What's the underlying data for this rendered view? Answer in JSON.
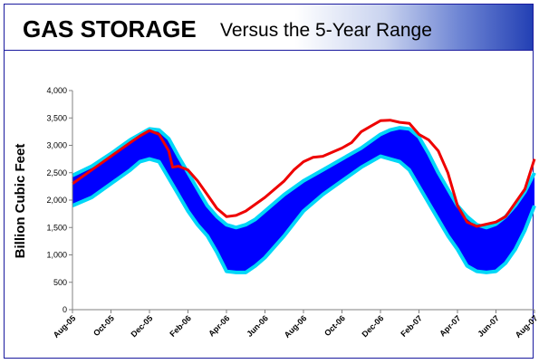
{
  "header": {
    "title_main": "GAS STORAGE",
    "title_sub": "Versus the 5-Year Range"
  },
  "chart_data": {
    "type": "area",
    "title": "GAS STORAGE Versus the 5-Year Range",
    "xlabel": "",
    "ylabel": "Billion Cubic Feet",
    "ylim": [
      0,
      4000
    ],
    "y_ticks": [
      "0",
      "500",
      "1,000",
      "1,500",
      "2,000",
      "2,500",
      "3,000",
      "3,500",
      "4,000"
    ],
    "x_ticks": [
      "Aug-05",
      "Oct-05",
      "Dec-05",
      "Feb-06",
      "Apr-06",
      "Jun-06",
      "Aug-06",
      "Oct-06",
      "Dec-06",
      "Feb-07",
      "Apr-07",
      "Jun-07",
      "Aug-07"
    ],
    "x_range": [
      0,
      24
    ],
    "grid": false,
    "colors": {
      "band_fill": "#0000ff",
      "band_edge": "#00d7f7",
      "storage_line": "#ee0000"
    },
    "series": [
      {
        "kind": "band_max",
        "points": [
          [
            0,
            2450
          ],
          [
            1,
            2620
          ],
          [
            2,
            2850
          ],
          [
            3,
            3100
          ],
          [
            3.5,
            3200
          ],
          [
            4,
            3300
          ],
          [
            4.5,
            3280
          ],
          [
            5,
            3120
          ],
          [
            5.5,
            2800
          ],
          [
            6,
            2500
          ],
          [
            6.5,
            2200
          ],
          [
            7,
            1900
          ],
          [
            7.5,
            1700
          ],
          [
            8,
            1550
          ],
          [
            8.5,
            1500
          ],
          [
            9,
            1550
          ],
          [
            9.5,
            1650
          ],
          [
            10,
            1800
          ],
          [
            11,
            2100
          ],
          [
            12,
            2350
          ],
          [
            13,
            2550
          ],
          [
            14,
            2750
          ],
          [
            15,
            2950
          ],
          [
            16,
            3200
          ],
          [
            16.5,
            3280
          ],
          [
            17,
            3320
          ],
          [
            17.5,
            3300
          ],
          [
            18,
            3150
          ],
          [
            18.5,
            2850
          ],
          [
            19,
            2500
          ],
          [
            19.5,
            2200
          ],
          [
            20,
            1900
          ],
          [
            20.5,
            1700
          ],
          [
            21,
            1550
          ],
          [
            21.5,
            1500
          ],
          [
            22,
            1560
          ],
          [
            22.5,
            1700
          ],
          [
            23,
            1900
          ],
          [
            23.5,
            2150
          ],
          [
            24,
            2500
          ]
        ]
      },
      {
        "kind": "band_min",
        "points": [
          [
            0,
            1900
          ],
          [
            1,
            2050
          ],
          [
            2,
            2300
          ],
          [
            3,
            2550
          ],
          [
            3.5,
            2700
          ],
          [
            4,
            2750
          ],
          [
            4.5,
            2700
          ],
          [
            5,
            2400
          ],
          [
            5.5,
            2100
          ],
          [
            6,
            1800
          ],
          [
            6.5,
            1550
          ],
          [
            7,
            1350
          ],
          [
            7.5,
            1050
          ],
          [
            8,
            700
          ],
          [
            8.5,
            680
          ],
          [
            9,
            680
          ],
          [
            9.5,
            800
          ],
          [
            10,
            950
          ],
          [
            11,
            1350
          ],
          [
            12,
            1800
          ],
          [
            13,
            2100
          ],
          [
            14,
            2350
          ],
          [
            15,
            2600
          ],
          [
            16,
            2800
          ],
          [
            16.5,
            2750
          ],
          [
            17,
            2700
          ],
          [
            17.5,
            2550
          ],
          [
            18,
            2250
          ],
          [
            18.5,
            1950
          ],
          [
            19,
            1650
          ],
          [
            19.5,
            1350
          ],
          [
            20,
            1100
          ],
          [
            20.5,
            800
          ],
          [
            21,
            700
          ],
          [
            21.5,
            680
          ],
          [
            22,
            700
          ],
          [
            22.5,
            850
          ],
          [
            23,
            1100
          ],
          [
            23.5,
            1450
          ],
          [
            24,
            1900
          ]
        ]
      },
      {
        "kind": "storage",
        "points": [
          [
            0,
            2300
          ],
          [
            1,
            2550
          ],
          [
            2,
            2800
          ],
          [
            3,
            3050
          ],
          [
            3.5,
            3170
          ],
          [
            4,
            3270
          ],
          [
            4.5,
            3200
          ],
          [
            5,
            2900
          ],
          [
            5.2,
            2600
          ],
          [
            5.5,
            2620
          ],
          [
            6,
            2550
          ],
          [
            6.5,
            2350
          ],
          [
            7,
            2100
          ],
          [
            7.5,
            1850
          ],
          [
            8,
            1700
          ],
          [
            8.5,
            1720
          ],
          [
            9,
            1800
          ],
          [
            10,
            2050
          ],
          [
            11,
            2350
          ],
          [
            11.5,
            2550
          ],
          [
            12,
            2700
          ],
          [
            12.5,
            2780
          ],
          [
            13,
            2800
          ],
          [
            14,
            2950
          ],
          [
            14.5,
            3050
          ],
          [
            15,
            3250
          ],
          [
            15.5,
            3350
          ],
          [
            16,
            3450
          ],
          [
            16.5,
            3460
          ],
          [
            17,
            3420
          ],
          [
            17.5,
            3400
          ],
          [
            18,
            3200
          ],
          [
            18.5,
            3100
          ],
          [
            19,
            2900
          ],
          [
            19.5,
            2500
          ],
          [
            20,
            1900
          ],
          [
            20.5,
            1600
          ],
          [
            21,
            1520
          ],
          [
            21.5,
            1560
          ],
          [
            22,
            1600
          ],
          [
            22.5,
            1700
          ],
          [
            23,
            1950
          ],
          [
            23.5,
            2200
          ],
          [
            24,
            2750
          ]
        ]
      }
    ]
  }
}
